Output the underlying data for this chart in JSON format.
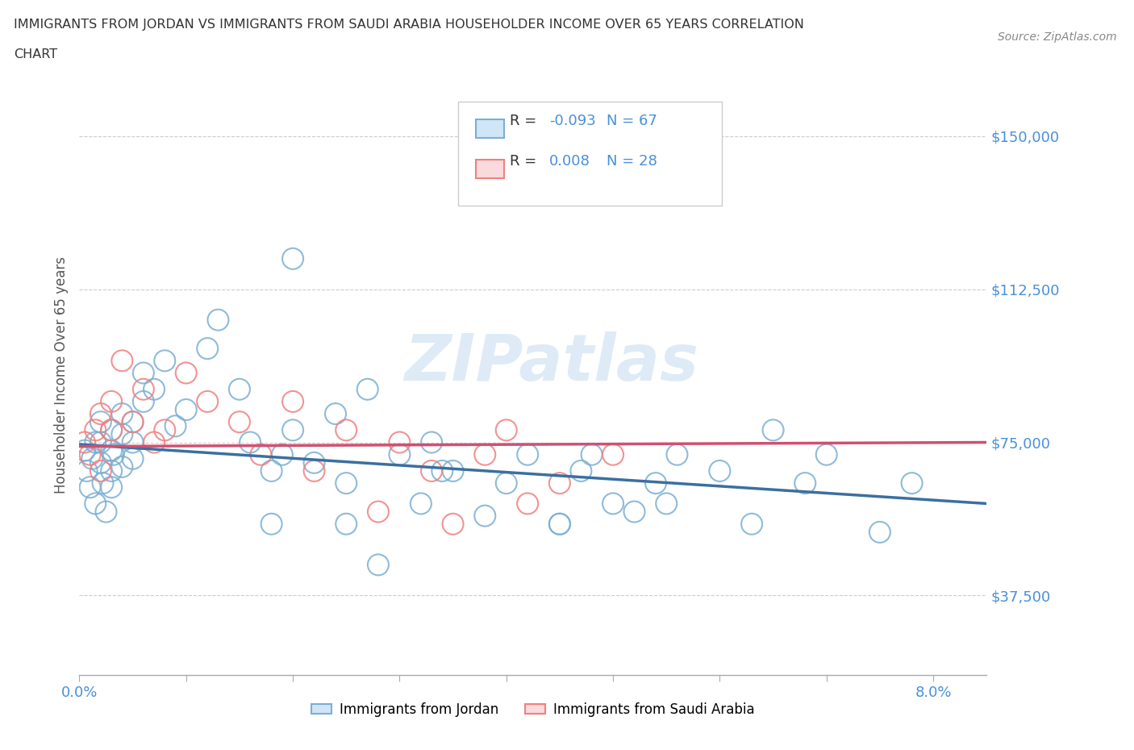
{
  "title_line1": "IMMIGRANTS FROM JORDAN VS IMMIGRANTS FROM SAUDI ARABIA HOUSEHOLDER INCOME OVER 65 YEARS CORRELATION",
  "title_line2": "CHART",
  "source_text": "Source: ZipAtlas.com",
  "ylabel": "Householder Income Over 65 years",
  "watermark": "ZIPatlas",
  "jordan_color": "#7bafd4",
  "saudi_color": "#f08080",
  "jordan_line_color": "#3b6fa0",
  "saudi_line_color": "#d05070",
  "legend_jordan_label": "Immigrants from Jordan",
  "legend_saudi_label": "Immigrants from Saudi Arabia",
  "jordan_R": -0.093,
  "jordan_N": 67,
  "saudi_R": 0.008,
  "saudi_N": 28,
  "r_color": "#4a90d9",
  "yticks": [
    37500,
    75000,
    112500,
    150000
  ],
  "ytick_labels": [
    "$37,500",
    "$75,000",
    "$112,500",
    "$150,000"
  ],
  "xmin": 0.0,
  "xmax": 0.085,
  "ymin": 18000,
  "ymax": 165000,
  "jordan_points_x": [
    0.0005,
    0.0007,
    0.001,
    0.0012,
    0.0015,
    0.0015,
    0.002,
    0.002,
    0.002,
    0.0022,
    0.0025,
    0.003,
    0.003,
    0.003,
    0.003,
    0.0032,
    0.004,
    0.004,
    0.004,
    0.005,
    0.005,
    0.005,
    0.006,
    0.006,
    0.007,
    0.008,
    0.009,
    0.01,
    0.012,
    0.013,
    0.015,
    0.016,
    0.018,
    0.019,
    0.02,
    0.022,
    0.024,
    0.025,
    0.027,
    0.03,
    0.032,
    0.033,
    0.035,
    0.038,
    0.04,
    0.042,
    0.045,
    0.047,
    0.048,
    0.05,
    0.052,
    0.054,
    0.056,
    0.06,
    0.063,
    0.065,
    0.068,
    0.07,
    0.025,
    0.02,
    0.018,
    0.028,
    0.034,
    0.045,
    0.055,
    0.075,
    0.078
  ],
  "jordan_points_y": [
    73000,
    68000,
    64000,
    71000,
    75000,
    60000,
    70000,
    75000,
    80000,
    65000,
    58000,
    73000,
    78000,
    68000,
    64000,
    72000,
    77000,
    82000,
    69000,
    75000,
    80000,
    71000,
    85000,
    92000,
    88000,
    95000,
    79000,
    83000,
    98000,
    105000,
    88000,
    75000,
    68000,
    72000,
    78000,
    70000,
    82000,
    65000,
    88000,
    72000,
    60000,
    75000,
    68000,
    57000,
    65000,
    72000,
    55000,
    68000,
    72000,
    60000,
    58000,
    65000,
    72000,
    68000,
    55000,
    78000,
    65000,
    72000,
    55000,
    120000,
    55000,
    45000,
    68000,
    55000,
    60000,
    53000,
    65000
  ],
  "saudi_points_x": [
    0.0005,
    0.001,
    0.0015,
    0.002,
    0.002,
    0.003,
    0.003,
    0.004,
    0.005,
    0.006,
    0.007,
    0.008,
    0.01,
    0.012,
    0.015,
    0.017,
    0.02,
    0.022,
    0.025,
    0.028,
    0.03,
    0.033,
    0.035,
    0.038,
    0.04,
    0.042,
    0.045,
    0.05
  ],
  "saudi_points_y": [
    75000,
    72000,
    78000,
    68000,
    82000,
    78000,
    85000,
    95000,
    80000,
    88000,
    75000,
    78000,
    92000,
    85000,
    80000,
    72000,
    85000,
    68000,
    78000,
    58000,
    75000,
    68000,
    55000,
    72000,
    78000,
    60000,
    65000,
    72000
  ],
  "jordan_trend_x": [
    0.0,
    0.085
  ],
  "jordan_trend_y": [
    74500,
    60000
  ],
  "saudi_trend_x": [
    0.0,
    0.085
  ],
  "saudi_trend_y": [
    74000,
    75000
  ],
  "bg_color": "#ffffff",
  "grid_color": "#cccccc",
  "title_color": "#333333",
  "axis_label_color": "#555555",
  "tick_label_color": "#4a90d9",
  "xticks": [
    0.0,
    0.01,
    0.02,
    0.03,
    0.04,
    0.05,
    0.06,
    0.07,
    0.08
  ],
  "xtick_labels": [
    "0.0%",
    "",
    "",
    "",
    "",
    "",
    "",
    "",
    "8.0%"
  ]
}
